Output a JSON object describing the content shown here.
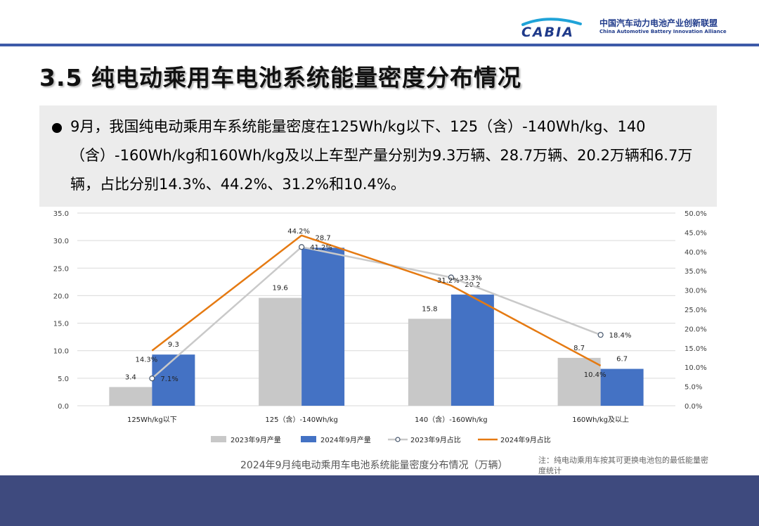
{
  "header": {
    "logo_mark": "CABIA",
    "logo_cn": "中国汽车动力电池产业创新联盟",
    "logo_en": "China Automotive Battery Innovation Alliance"
  },
  "page_title": "3.5 纯电动乘用车电池系统能量密度分布情况",
  "bullet_text": "9月，我国纯电动乘用车系统能量密度在125Wh/kg以下、125（含）-140Wh/kg、140（含）-160Wh/kg和160Wh/kg及以上车型产量分别为9.3万辆、28.7万辆、20.2万辆和6.7万辆，占比分别14.3%、44.2%、31.2%和10.4%。",
  "caption": "2024年9月纯电动乘用车电池系统能量密度分布情况（万辆）",
  "note": "注：纯电动乘用车按其可更换电池包的最低能量密度统计",
  "colors": {
    "accent": "#3d5aa8",
    "footer": "#3e4a7e",
    "bar2023": "#c8c8c8",
    "bar2024": "#4472c4",
    "line2023": "#c9c9c9",
    "line2024": "#e57a12"
  },
  "chart_data": {
    "type": "bar",
    "categories": [
      "125Wh/kg以下",
      "125（含）-140Wh/kg",
      "140（含）-160Wh/kg",
      "160Wh/kg及以上"
    ],
    "series": [
      {
        "name": "2023年9月产量",
        "type": "bar",
        "axis": "left",
        "values": [
          3.4,
          19.6,
          15.8,
          8.7
        ],
        "labels": [
          "3.4",
          "19.6",
          "15.8",
          "8.7"
        ]
      },
      {
        "name": "2024年9月产量",
        "type": "bar",
        "axis": "left",
        "values": [
          9.3,
          28.7,
          20.2,
          6.7
        ],
        "labels": [
          "9.3",
          "28.7",
          "20.2",
          "6.7"
        ]
      },
      {
        "name": "2023年9月占比",
        "type": "line",
        "axis": "right",
        "values": [
          7.1,
          41.2,
          33.3,
          18.4
        ],
        "labels": [
          "7.1%",
          "41.2%",
          "33.3%",
          "18.4%"
        ]
      },
      {
        "name": "2024年9月占比",
        "type": "line",
        "axis": "right",
        "values": [
          14.3,
          44.2,
          31.2,
          10.4
        ],
        "labels": [
          "14.3%",
          "44.2%",
          "31.2%",
          "10.4%"
        ]
      }
    ],
    "y_left": {
      "min": 0,
      "max": 35,
      "step": 5,
      "ticks": [
        "0.0",
        "5.0",
        "10.0",
        "15.0",
        "20.0",
        "25.0",
        "30.0",
        "35.0"
      ]
    },
    "y_right": {
      "min": 0,
      "max": 50,
      "step": 5,
      "ticks": [
        "0.0%",
        "5.0%",
        "10.0%",
        "15.0%",
        "20.0%",
        "25.0%",
        "30.0%",
        "35.0%",
        "40.0%",
        "45.0%",
        "50.0%"
      ]
    },
    "grid": true,
    "legend": "bottom"
  }
}
